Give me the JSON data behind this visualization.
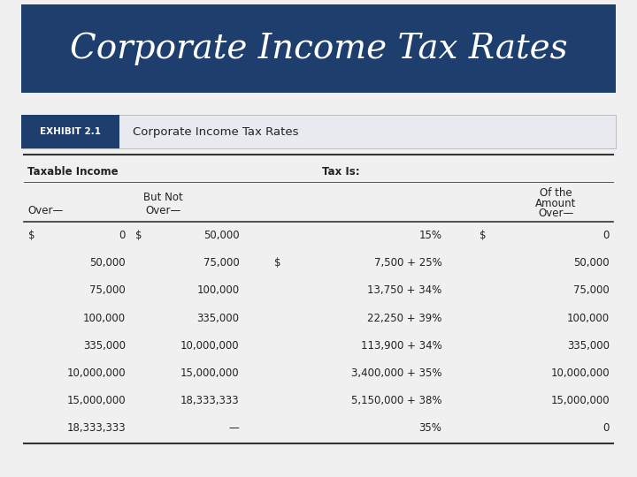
{
  "title": "Corporate Income Tax Rates",
  "title_bg_color": "#1e3f6e",
  "title_text_color": "#ffffff",
  "exhibit_label": "EXHIBIT 2.1",
  "exhibit_title": "Corporate Income Tax Rates",
  "exhibit_bg_color": "#e8eaf0",
  "exhibit_label_bg": "#1e3f6e",
  "exhibit_label_color": "#ffffff",
  "taxable_income_header": "Taxable Income",
  "tax_is_header": "Tax Is:",
  "col2_header1": "But Not",
  "col2_header2": "Over—",
  "col1_header": "Over—",
  "col4_header1": "Of the",
  "col4_header2": "Amount",
  "col4_header3": "Over—",
  "rows": [
    [
      "$",
      "0",
      "$",
      "50,000",
      "",
      "15%",
      "$",
      "0"
    ],
    [
      "",
      "50,000",
      "",
      "75,000",
      "$",
      "7,500 + 25%",
      "",
      "50,000"
    ],
    [
      "",
      "75,000",
      "",
      "100,000",
      "",
      "13,750 + 34%",
      "",
      "75,000"
    ],
    [
      "",
      "100,000",
      "",
      "335,000",
      "",
      "22,250 + 39%",
      "",
      "100,000"
    ],
    [
      "",
      "335,000",
      "",
      "10,000,000",
      "",
      "113,900 + 34%",
      "",
      "335,000"
    ],
    [
      "",
      "10,000,000",
      "",
      "15,000,000",
      "",
      "3,400,000 + 35%",
      "",
      "10,000,000"
    ],
    [
      "",
      "15,000,000",
      "",
      "18,333,333",
      "",
      "5,150,000 + 38%",
      "",
      "15,000,000"
    ],
    [
      "",
      "18,333,333",
      "",
      "—",
      "",
      "35%",
      "",
      "0"
    ]
  ],
  "bg_color": "#f0f0f0"
}
